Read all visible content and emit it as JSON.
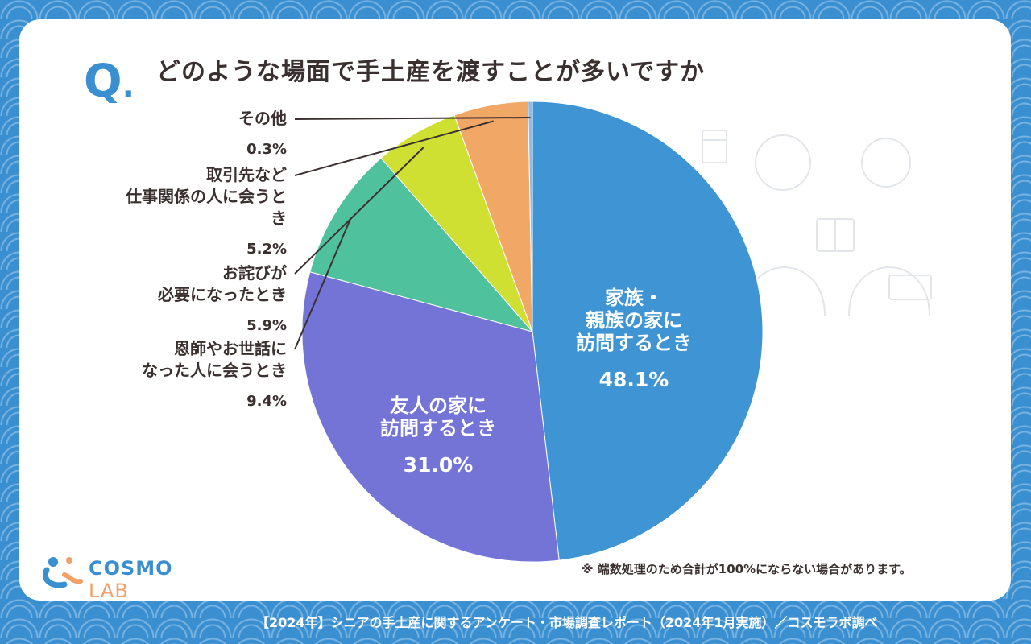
{
  "header": {
    "q_mark": "Q",
    "question": "どのような場面で手土産を渡すことが多いですか"
  },
  "chart_data": {
    "type": "pie",
    "title": "どのような場面で手土産を渡すことが多いですか",
    "slices": [
      {
        "label_lines": [
          "家族・",
          "親族の家に",
          "訪問するとき"
        ],
        "value": 48.1,
        "value_text": "48.1%",
        "color": "#3f95d4",
        "label_inside": true
      },
      {
        "label_lines": [
          "友人の家に",
          "訪問するとき"
        ],
        "value": 31.0,
        "value_text": "31.0%",
        "color": "#7374d6",
        "label_inside": true
      },
      {
        "label_lines": [
          "恩師やお世話に",
          "なった人に会うとき"
        ],
        "value": 9.4,
        "value_text": "9.4%",
        "color": "#4fc19c",
        "label_inside": false
      },
      {
        "label_lines": [
          "お詫びが",
          "必要になったとき"
        ],
        "value": 5.9,
        "value_text": "5.9%",
        "color": "#cfe033",
        "label_inside": false
      },
      {
        "label_lines": [
          "取引先など",
          "仕事関係の人に会うと",
          "き"
        ],
        "value": 5.2,
        "value_text": "5.2%",
        "color": "#f1a766",
        "label_inside": false
      },
      {
        "label_lines": [
          "その他"
        ],
        "value": 0.3,
        "value_text": "0.3%",
        "color": "#8fbbe4",
        "label_inside": false
      }
    ]
  },
  "footnote": "※ 端数処理のため合計が100%にならない場合があります。",
  "logo": {
    "brand": "COSMO",
    "suffix": "LAB"
  },
  "source": "【2024年】シニアの手土産に関するアンケート・市場調査レポート（2024年1月実施）／コスモラボ調べ",
  "colors": {
    "accent": "#3a8fd1",
    "text": "#3b3030"
  }
}
